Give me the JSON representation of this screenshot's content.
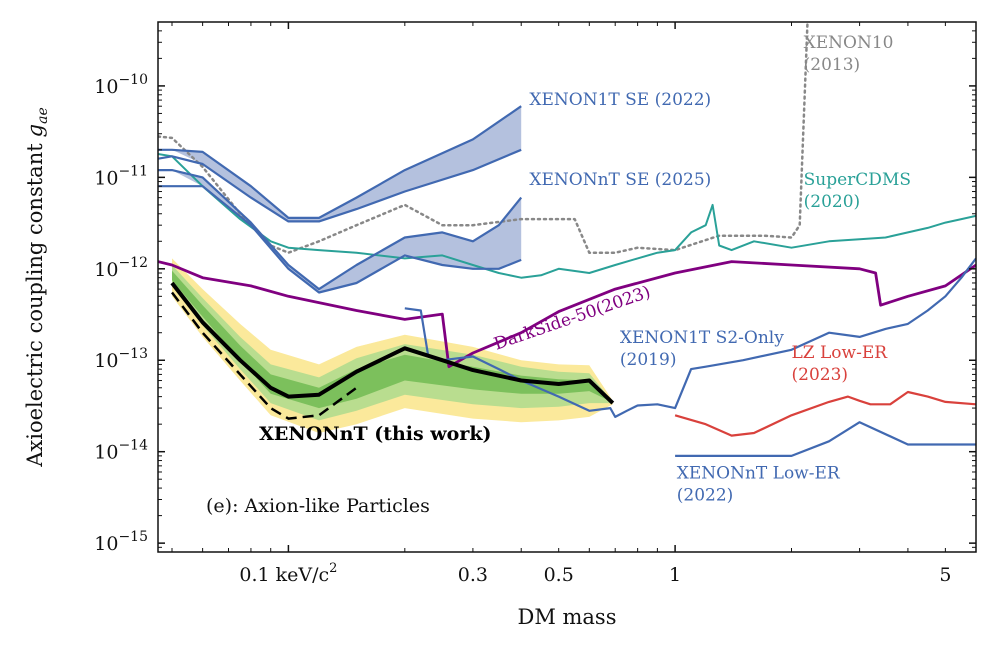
{
  "chart_data": {
    "type": "line",
    "xlabel": "DM mass",
    "ylabel": "Axioelectric coupling constant",
    "ylabel_symbol": "g",
    "ylabel_subscript": "ae",
    "xscale": "log",
    "yscale": "log",
    "xlim": [
      0.046,
      6.0
    ],
    "ylim": [
      8e-16,
      5e-10
    ],
    "x_ticks": [
      {
        "value": 0.1,
        "label": "0.1 keV/c",
        "sup": "2"
      },
      {
        "value": 0.3,
        "label": "0.3",
        "sup": ""
      },
      {
        "value": 0.5,
        "label": "0.5",
        "sup": ""
      },
      {
        "value": 1,
        "label": "1",
        "sup": ""
      },
      {
        "value": 5,
        "label": "5",
        "sup": ""
      }
    ],
    "y_ticks": [
      {
        "value": 1e-10,
        "base": "10",
        "exp": "−10"
      },
      {
        "value": 1e-11,
        "base": "10",
        "exp": "−11"
      },
      {
        "value": 1e-12,
        "base": "10",
        "exp": "−12"
      },
      {
        "value": 1e-13,
        "base": "10",
        "exp": "−13"
      },
      {
        "value": 1e-14,
        "base": "10",
        "exp": "−14"
      },
      {
        "value": 1e-15,
        "base": "10",
        "exp": "−15"
      }
    ],
    "panel_label": "(e): Axion-like Particles",
    "colors": {
      "blue": "#4169b1",
      "gray": "#888888",
      "teal": "#2aa198",
      "purple": "#800080",
      "red": "#d9413c",
      "black": "#000000",
      "green_1s": "#7cc05c",
      "green_2s": "#b9dd8f",
      "yellow": "#fbe99b",
      "fill_blue": "#b4c1de"
    },
    "bands": [
      {
        "name": "XENONnT 2σ",
        "color": "#fbe99b",
        "x": [
          0.05,
          0.06,
          0.075,
          0.09,
          0.12,
          0.15,
          0.2,
          0.3,
          0.4,
          0.5,
          0.6,
          0.69
        ],
        "lower": [
          5e-13,
          1.8e-13,
          6e-14,
          2.5e-14,
          1.6e-14,
          2e-14,
          3e-14,
          2.3e-14,
          2.1e-14,
          2.2e-14,
          2.4e-14,
          3.3e-14
        ],
        "upper": [
          1.3e-12,
          6e-13,
          2.5e-13,
          1.3e-13,
          9e-14,
          1.4e-13,
          1.9e-13,
          1.4e-13,
          1e-13,
          9e-14,
          8.8e-14,
          3.6e-14
        ]
      },
      {
        "name": "XENONnT 1σ",
        "color": "#b9dd8f",
        "x": [
          0.05,
          0.06,
          0.075,
          0.09,
          0.12,
          0.15,
          0.2,
          0.3,
          0.4,
          0.5,
          0.6,
          0.69
        ],
        "lower": [
          6.5e-13,
          2.4e-13,
          8e-14,
          3.4e-14,
          2.2e-14,
          2.8e-14,
          4.2e-14,
          3.3e-14,
          3e-14,
          3.1e-14,
          3.4e-14,
          3.4e-14
        ],
        "upper": [
          1.1e-12,
          4.8e-13,
          1.8e-13,
          9e-14,
          6.5e-14,
          1.05e-13,
          1.5e-13,
          1.15e-13,
          8.5e-14,
          7.5e-14,
          7.2e-14,
          3.5e-14
        ]
      },
      {
        "name": "XENONnT median",
        "color": "#7cc05c",
        "x": [
          0.05,
          0.06,
          0.075,
          0.09,
          0.12,
          0.15,
          0.2,
          0.3,
          0.4,
          0.5,
          0.6,
          0.69
        ],
        "lower": [
          7.5e-13,
          3e-13,
          1e-13,
          4.3e-14,
          3e-14,
          3.8e-14,
          6e-14,
          4.8e-14,
          4.3e-14,
          4.3e-14,
          4.6e-14,
          3.45e-14
        ],
        "upper": [
          9.5e-13,
          4e-13,
          1.45e-13,
          7e-14,
          5e-14,
          8e-14,
          1.15e-13,
          8.5e-14,
          6.8e-14,
          6.2e-14,
          6e-14,
          3.5e-14
        ]
      },
      {
        "name": "XENON1T SE (2022) band",
        "color": "#b4c1de",
        "x": [
          0.05,
          0.06,
          0.08,
          0.1,
          0.12,
          0.15,
          0.2,
          0.3,
          0.4
        ],
        "lower": [
          2e-11,
          1.4e-11,
          6e-12,
          3.3e-12,
          3.3e-12,
          4.5e-12,
          7e-12,
          1.2e-11,
          2e-11
        ],
        "upper": [
          2e-11,
          1.9e-11,
          8e-12,
          3.6e-12,
          3.6e-12,
          6e-12,
          1.2e-11,
          2.6e-11,
          6e-11
        ]
      },
      {
        "name": "XENONnT SE (2025) band",
        "color": "#b4c1de",
        "x": [
          0.05,
          0.06,
          0.08,
          0.1,
          0.12,
          0.15,
          0.2,
          0.25,
          0.3,
          0.35,
          0.4
        ],
        "lower": [
          1.2e-11,
          8e-12,
          3e-12,
          1e-12,
          5.5e-13,
          7e-13,
          1.4e-12,
          1.1e-12,
          1e-12,
          1e-12,
          1.25e-12
        ],
        "upper": [
          1.2e-11,
          1e-11,
          3.2e-12,
          1.1e-12,
          6e-13,
          1.1e-12,
          2.2e-12,
          2.5e-12,
          2e-12,
          3e-12,
          6e-12
        ]
      }
    ],
    "series": [
      {
        "name": "XENON10 (2013)",
        "color": "#888888",
        "dash": "dotted",
        "width": 2.5,
        "x": [
          0.046,
          0.05,
          0.06,
          0.075,
          0.09,
          0.1,
          0.12,
          0.15,
          0.2,
          0.25,
          0.3,
          0.4,
          0.5,
          0.55,
          0.6,
          0.7,
          0.8,
          1.0,
          1.3,
          1.7,
          2.0,
          2.1,
          2.2
        ],
        "y": [
          2.8e-11,
          2.7e-11,
          1.3e-11,
          4e-12,
          1.8e-12,
          1.5e-12,
          2e-12,
          3e-12,
          5e-12,
          3e-12,
          3e-12,
          3.5e-12,
          3.5e-12,
          3.5e-12,
          1.5e-12,
          1.5e-12,
          1.7e-12,
          1.6e-12,
          2.3e-12,
          2.3e-12,
          2.2e-12,
          3e-12,
          5e-10
        ]
      },
      {
        "name": "SuperCDMS (2020)",
        "color": "#2aa198",
        "dash": "solid",
        "width": 2,
        "x": [
          0.046,
          0.05,
          0.06,
          0.075,
          0.09,
          0.1,
          0.12,
          0.15,
          0.2,
          0.25,
          0.3,
          0.35,
          0.4,
          0.45,
          0.5,
          0.6,
          0.7,
          0.8,
          0.9,
          1.0,
          1.1,
          1.2,
          1.25,
          1.3,
          1.4,
          1.6,
          2.0,
          2.5,
          3.0,
          3.5,
          4.0,
          4.5,
          5.0,
          5.5,
          6.0
        ],
        "y": [
          1.8e-11,
          1.7e-11,
          8e-12,
          3.5e-12,
          2e-12,
          1.7e-12,
          1.6e-12,
          1.5e-12,
          1.3e-12,
          1.4e-12,
          1.1e-12,
          9e-13,
          8e-13,
          8.5e-13,
          1e-12,
          9e-13,
          1.1e-12,
          1.3e-12,
          1.5e-12,
          1.6e-12,
          2.5e-12,
          3e-12,
          5e-12,
          1.8e-12,
          1.6e-12,
          2e-12,
          1.7e-12,
          2e-12,
          2.1e-12,
          2.2e-12,
          2.5e-12,
          2.8e-12,
          3.2e-12,
          3.5e-12,
          3.8e-12
        ]
      },
      {
        "name": "XENON1T SE (2022) upper",
        "color": "#4169b1",
        "dash": "solid",
        "width": 2.2,
        "x": [
          0.046,
          0.05,
          0.06,
          0.08,
          0.1,
          0.12,
          0.15,
          0.2,
          0.3,
          0.4
        ],
        "y": [
          2e-11,
          2e-11,
          1.9e-11,
          8e-12,
          3.6e-12,
          3.6e-12,
          6e-12,
          1.2e-11,
          2.6e-11,
          6e-11
        ]
      },
      {
        "name": "XENON1T SE (2022) lower",
        "color": "#4169b1",
        "dash": "solid",
        "width": 2.2,
        "x": [
          0.046,
          0.05,
          0.06,
          0.08,
          0.1,
          0.12,
          0.15,
          0.2,
          0.3,
          0.4
        ],
        "y": [
          1.6e-11,
          1.7e-11,
          1.4e-11,
          6e-12,
          3.3e-12,
          3.3e-12,
          4.5e-12,
          7e-12,
          1.2e-11,
          2e-11
        ]
      },
      {
        "name": "XENONnT SE (2025) upper",
        "color": "#4169b1",
        "dash": "solid",
        "width": 2.2,
        "x": [
          0.046,
          0.05,
          0.06,
          0.08,
          0.1,
          0.12,
          0.15,
          0.2,
          0.25,
          0.3,
          0.35,
          0.4
        ],
        "y": [
          1.2e-11,
          1.2e-11,
          1e-11,
          3.2e-12,
          1.1e-12,
          6e-13,
          1.1e-12,
          2.2e-12,
          2.5e-12,
          2e-12,
          3e-12,
          6e-12
        ]
      },
      {
        "name": "XENONnT SE (2025) lower",
        "color": "#4169b1",
        "dash": "solid",
        "width": 2.2,
        "x": [
          0.046,
          0.05,
          0.06,
          0.08,
          0.1,
          0.12,
          0.15,
          0.2,
          0.25,
          0.3,
          0.35,
          0.4
        ],
        "y": [
          8e-12,
          8e-12,
          8e-12,
          3e-12,
          1e-12,
          5.5e-13,
          7e-13,
          1.4e-12,
          1.1e-12,
          1e-12,
          1e-12,
          1.25e-12
        ]
      },
      {
        "name": "DarkSide-50 (2023)",
        "color": "#800080",
        "dash": "solid",
        "width": 2.8,
        "x": [
          0.046,
          0.05,
          0.06,
          0.08,
          0.1,
          0.15,
          0.2,
          0.25,
          0.26,
          0.3,
          0.4,
          0.5,
          0.7,
          1.0,
          1.4,
          2.0,
          3.0,
          3.3,
          3.4,
          4.0,
          5.0,
          6.0
        ],
        "y": [
          1.2e-12,
          1.1e-12,
          8e-13,
          6.5e-13,
          5e-13,
          3.5e-13,
          2.8e-13,
          3.2e-13,
          8.5e-14,
          1.2e-13,
          2e-13,
          3.4e-13,
          6e-13,
          9e-13,
          1.2e-12,
          1.1e-12,
          1e-12,
          9e-13,
          4e-13,
          5e-13,
          6.5e-13,
          1.1e-12
        ]
      },
      {
        "name": "XENON1T S2-Only (2019)",
        "color": "#4169b1",
        "dash": "solid",
        "width": 2.2,
        "x": [
          0.2,
          0.22,
          0.23,
          0.25,
          0.3,
          0.35,
          0.4,
          0.5,
          0.6,
          0.68,
          0.7,
          0.75,
          0.8,
          0.9,
          1.0,
          1.1,
          1.2,
          1.5,
          2.0,
          2.5,
          3.0,
          3.5,
          4.0,
          4.5,
          5.0,
          5.5,
          6.0
        ],
        "y": [
          3.7e-13,
          3.5e-13,
          1.1e-13,
          1e-13,
          1.1e-13,
          8e-14,
          6e-14,
          4e-14,
          2.8e-14,
          3e-14,
          2.4e-14,
          2.8e-14,
          3.2e-14,
          3.3e-14,
          3e-14,
          8e-14,
          8.5e-14,
          1e-13,
          1.3e-13,
          2e-13,
          1.8e-13,
          2.2e-13,
          2.5e-13,
          3.5e-13,
          5e-13,
          8e-13,
          1.3e-12
        ]
      },
      {
        "name": "LZ Low-ER (2023)",
        "color": "#d9413c",
        "dash": "solid",
        "width": 2.2,
        "x": [
          1.0,
          1.2,
          1.4,
          1.6,
          2.0,
          2.5,
          2.8,
          3.0,
          3.2,
          3.6,
          4.0,
          4.5,
          5.0,
          6.0
        ],
        "y": [
          2.5e-14,
          2e-14,
          1.5e-14,
          1.6e-14,
          2.5e-14,
          3.5e-14,
          4e-14,
          3.6e-14,
          3.3e-14,
          3.3e-14,
          4.5e-14,
          4e-14,
          3.5e-14,
          3.3e-14
        ]
      },
      {
        "name": "XENONnT Low-ER (2022)",
        "color": "#4169b1",
        "dash": "solid",
        "width": 2.2,
        "x": [
          1.0,
          1.5,
          2.0,
          2.5,
          3.0,
          4.0,
          5.0,
          6.0
        ],
        "y": [
          9e-15,
          9e-15,
          9e-15,
          1.3e-14,
          2.1e-14,
          1.2e-14,
          1.2e-14,
          1.2e-14
        ]
      },
      {
        "name": "XENONnT (this work)",
        "color": "#000000",
        "dash": "solid",
        "width": 4,
        "x": [
          0.05,
          0.06,
          0.075,
          0.09,
          0.1,
          0.12,
          0.15,
          0.2,
          0.25,
          0.3,
          0.4,
          0.5,
          0.6,
          0.69
        ],
        "y": [
          7e-13,
          2.6e-13,
          1e-13,
          5e-14,
          4e-14,
          4.2e-14,
          7.5e-14,
          1.35e-13,
          1e-13,
          7.8e-14,
          6e-14,
          5.5e-14,
          6e-14,
          3.4e-14
        ]
      },
      {
        "name": "XENONnT (this work) expected",
        "color": "#000000",
        "dash": "dashed",
        "width": 2.5,
        "x": [
          0.05,
          0.06,
          0.075,
          0.09,
          0.1,
          0.12,
          0.15
        ],
        "y": [
          5.5e-13,
          2e-13,
          7e-14,
          3e-14,
          2.3e-14,
          2.5e-14,
          5e-14
        ]
      }
    ],
    "annotations": [
      {
        "lines": [
          "XENON10",
          "(2013)"
        ],
        "color": "#888888",
        "x": 2.15,
        "y": 2.6e-10,
        "bold": false,
        "rotate": 0
      },
      {
        "lines": [
          "XENON1T SE (2022)"
        ],
        "color": "#4169b1",
        "x": 0.42,
        "y": 6.2e-11,
        "bold": false,
        "rotate": 0
      },
      {
        "lines": [
          "XENONnT SE (2025)"
        ],
        "color": "#4169b1",
        "x": 0.42,
        "y": 8.3e-12,
        "bold": false,
        "rotate": 0
      },
      {
        "lines": [
          "SuperCDMS",
          "(2020)"
        ],
        "color": "#2aa198",
        "x": 2.15,
        "y": 8.3e-12,
        "bold": false,
        "rotate": 0
      },
      {
        "lines": [
          "DarkSide-50(2023)"
        ],
        "color": "#800080",
        "x": 0.345,
        "y": 1.3e-13,
        "bold": false,
        "rotate": -19
      },
      {
        "lines": [
          "XENON1T S2-Only",
          "(2019)"
        ],
        "color": "#4169b1",
        "x": 0.72,
        "y": 1.55e-13,
        "bold": false,
        "rotate": 0
      },
      {
        "lines": [
          "LZ Low-ER",
          "(2023)"
        ],
        "color": "#d9413c",
        "x": 2.0,
        "y": 1.06e-13,
        "bold": false,
        "rotate": 0
      },
      {
        "lines": [
          "XENONnT (this work)"
        ],
        "color": "#000000",
        "x": 0.084,
        "y": 1.35e-14,
        "bold": true,
        "rotate": 0
      },
      {
        "lines": [
          "XENONnT Low-ER",
          "(2022)"
        ],
        "color": "#4169b1",
        "x": 1.01,
        "y": 5.1e-15,
        "bold": false,
        "rotate": 0
      }
    ]
  }
}
